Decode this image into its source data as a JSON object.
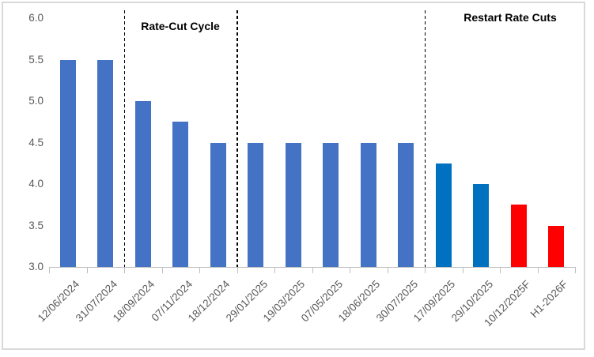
{
  "chart_data": {
    "type": "bar",
    "title": "",
    "xlabel": "",
    "ylabel": "",
    "categories": [
      "12/06/2024",
      "31/07/2024",
      "18/09/2024",
      "07/11/2024",
      "18/12/2024",
      "29/01/2025",
      "19/03/2025",
      "07/05/2025",
      "18/06/2025",
      "30/07/2025",
      "17/09/2025",
      "29/10/2025",
      "10/12/2025F",
      "H1-2026F"
    ],
    "values": [
      5.5,
      5.5,
      5.0,
      4.75,
      4.5,
      4.5,
      4.5,
      4.5,
      4.5,
      4.5,
      4.25,
      4.0,
      3.75,
      3.5
    ],
    "bar_colors": [
      "#4472C4",
      "#4472C4",
      "#4472C4",
      "#4472C4",
      "#4472C4",
      "#4472C4",
      "#4472C4",
      "#4472C4",
      "#4472C4",
      "#4472C4",
      "#0070C0",
      "#0070C0",
      "#FF0000",
      "#FF0000"
    ],
    "ylim": [
      3.0,
      6.0
    ],
    "ytick_labels": [
      "6.0",
      "5.5",
      "5.0",
      "4.5",
      "4.0",
      "3.5",
      "3.0"
    ],
    "grid": false,
    "legend_position": "none",
    "separators_after_category": [
      2,
      5,
      10
    ],
    "annotations": [
      {
        "text": "Rate-Cut Cycle",
        "region": "between first and second dashed separator, top of plot"
      },
      {
        "text": "Restart Rate Cuts",
        "region": "right of third dashed separator, top of plot"
      }
    ],
    "colors": {
      "cut_cycle_bar": "#4472C4",
      "restart_bar": "#0070C0",
      "forecast_bar": "#FF0000",
      "axis": "#BFBFBF",
      "tick_label": "#595959",
      "annotation_text": "#000000",
      "separator": "#000000",
      "frame_border": "#D9D9D9"
    }
  }
}
